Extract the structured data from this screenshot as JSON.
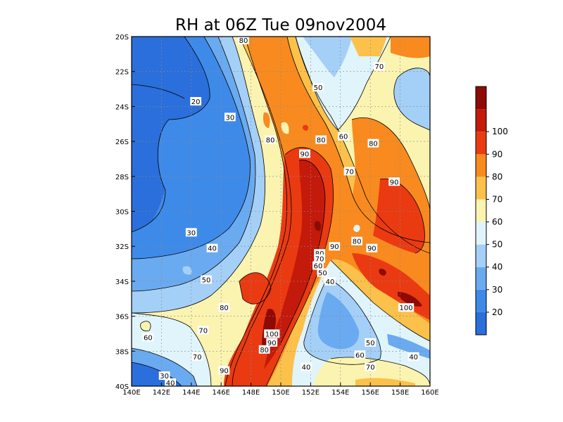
{
  "title": "RH at 06Z Tue 09nov2004",
  "x_ticks": [
    "140E",
    "142E",
    "144E",
    "146E",
    "148E",
    "150E",
    "152E",
    "154E",
    "156E",
    "158E",
    "160E"
  ],
  "y_ticks": [
    "20S",
    "22S",
    "24S",
    "26S",
    "28S",
    "30S",
    "32S",
    "34S",
    "36S",
    "38S",
    "40S"
  ],
  "colorbar": {
    "labels": [
      "20",
      "30",
      "40",
      "50",
      "60",
      "70",
      "80",
      "90",
      "100"
    ],
    "colors": [
      "#2a6fdb",
      "#3e8ae8",
      "#6aaaf0",
      "#a4cff7",
      "#e0f4fb",
      "#fbf3b0",
      "#fbc14a",
      "#f88a1f",
      "#ea3a12",
      "#c41a0b",
      "#8e0a05"
    ]
  },
  "chart_data": {
    "type": "heatmap",
    "title": "RH at 06Z Tue 09nov2004",
    "x_range": [
      140,
      160
    ],
    "y_range": [
      -40,
      -20
    ],
    "x_ticks": [
      "140E",
      "142E",
      "144E",
      "146E",
      "148E",
      "150E",
      "152E",
      "154E",
      "156E",
      "158E",
      "160E"
    ],
    "y_ticks": [
      "20S",
      "22S",
      "24S",
      "26S",
      "28S",
      "30S",
      "32S",
      "34S",
      "36S",
      "38S",
      "40S"
    ],
    "grid": true,
    "contour_levels": [
      20,
      30,
      40,
      50,
      60,
      70,
      80,
      90,
      100
    ],
    "contour_labels": [
      {
        "text": "80",
        "lon": 147.5,
        "lat": -20.2
      },
      {
        "text": "20",
        "lon": 144.3,
        "lat": -23.7
      },
      {
        "text": "30",
        "lon": 146.6,
        "lat": -24.6
      },
      {
        "text": "50",
        "lon": 152.5,
        "lat": -22.9
      },
      {
        "text": "70",
        "lon": 156.6,
        "lat": -21.7
      },
      {
        "text": "80",
        "lon": 149.3,
        "lat": -25.9
      },
      {
        "text": "80",
        "lon": 152.7,
        "lat": -25.9
      },
      {
        "text": "60",
        "lon": 154.2,
        "lat": -25.7
      },
      {
        "text": "80",
        "lon": 156.2,
        "lat": -26.1
      },
      {
        "text": "90",
        "lon": 151.6,
        "lat": -26.7
      },
      {
        "text": "70",
        "lon": 154.6,
        "lat": -27.7
      },
      {
        "text": "90",
        "lon": 157.6,
        "lat": -28.3
      },
      {
        "text": "30",
        "lon": 144.0,
        "lat": -31.2
      },
      {
        "text": "40",
        "lon": 145.4,
        "lat": -32.1
      },
      {
        "text": "80",
        "lon": 155.1,
        "lat": -31.7
      },
      {
        "text": "90",
        "lon": 153.6,
        "lat": -32.0
      },
      {
        "text": "90",
        "lon": 156.1,
        "lat": -32.1
      },
      {
        "text": "80",
        "lon": 152.6,
        "lat": -32.4
      },
      {
        "text": "70",
        "lon": 152.6,
        "lat": -32.7
      },
      {
        "text": "60",
        "lon": 152.5,
        "lat": -33.1
      },
      {
        "text": "50",
        "lon": 152.8,
        "lat": -33.5
      },
      {
        "text": "40",
        "lon": 153.3,
        "lat": -34.0
      },
      {
        "text": "50",
        "lon": 145.0,
        "lat": -33.9
      },
      {
        "text": "80",
        "lon": 146.2,
        "lat": -35.5
      },
      {
        "text": "100",
        "lon": 158.4,
        "lat": -35.5
      },
      {
        "text": "70",
        "lon": 144.8,
        "lat": -36.8
      },
      {
        "text": "100",
        "lon": 149.4,
        "lat": -37.0
      },
      {
        "text": "60",
        "lon": 141.1,
        "lat": -37.2
      },
      {
        "text": "90",
        "lon": 149.4,
        "lat": -37.5
      },
      {
        "text": "80",
        "lon": 148.9,
        "lat": -37.9
      },
      {
        "text": "50",
        "lon": 156.0,
        "lat": -37.5
      },
      {
        "text": "70",
        "lon": 144.4,
        "lat": -38.3
      },
      {
        "text": "60",
        "lon": 155.3,
        "lat": -38.2
      },
      {
        "text": "40",
        "lon": 158.9,
        "lat": -38.3
      },
      {
        "text": "70",
        "lon": 156.0,
        "lat": -38.9
      },
      {
        "text": "40",
        "lon": 151.7,
        "lat": -38.9
      },
      {
        "text": "90",
        "lon": 146.2,
        "lat": -39.1
      },
      {
        "text": "30",
        "lon": 142.2,
        "lat": -39.4
      },
      {
        "text": "40",
        "lon": 142.6,
        "lat": -39.8
      }
    ]
  }
}
